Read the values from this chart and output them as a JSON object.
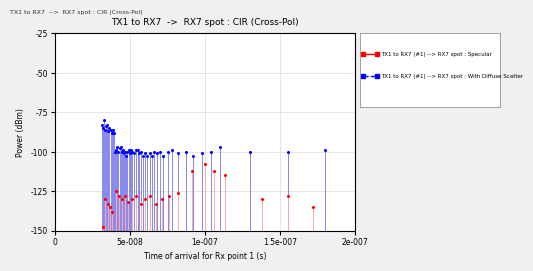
{
  "title": "TX1 to RX7  ->  RX7 spot : CIR (Cross-Pol)",
  "window_title": "TX1 to RX7  -->  RX7 spot : CIR (Cross-Pol)",
  "xlabel": "Time of arrival for Rx point 1 (s)",
  "ylabel": "Power (dBm)",
  "xlim": [
    0,
    2e-07
  ],
  "ylim": [
    -150,
    -25
  ],
  "yticks": [
    -25,
    -50,
    -75,
    -100,
    -125,
    -150
  ],
  "xticks": [
    0,
    5e-08,
    1e-07,
    1.5e-07,
    2e-07
  ],
  "xtick_labels": [
    "0",
    "5e-008",
    "1e-007",
    "1.5e-007",
    "2e-007"
  ],
  "legend1_label": "TX1 to RX7 (#1) --> RX7 spot : Specular",
  "legend2_label": "TX1 to RX7 (#1) --> RX7 spot : With Diffuse Scatter",
  "color_red": "#FF0000",
  "color_red_light": "#FFAAAA",
  "color_blue": "#0000FF",
  "color_blue_light": "#8888EE",
  "background_color": "#F0F0F0",
  "plot_bg": "#FFFFFF",
  "red_times": [
    3.2e-08,
    3.35e-08,
    3.5e-08,
    3.65e-08,
    3.8e-08,
    4.05e-08,
    4.25e-08,
    4.45e-08,
    4.65e-08,
    4.85e-08,
    5.1e-08,
    5.4e-08,
    5.7e-08,
    6e-08,
    6.3e-08,
    6.7e-08,
    7.1e-08,
    7.6e-08,
    8.2e-08,
    9.1e-08,
    1e-07,
    1.06e-07,
    1.13e-07,
    1.38e-07,
    1.55e-07,
    1.72e-07
  ],
  "red_powers": [
    -148,
    -130,
    -133,
    -135,
    -138,
    -125,
    -128,
    -130,
    -128,
    -132,
    -130,
    -128,
    -133,
    -130,
    -128,
    -133,
    -130,
    -128,
    -126,
    -112,
    -108,
    -112,
    -115,
    -130,
    -128,
    -135
  ],
  "blue_times": [
    3.1e-08,
    3.18e-08,
    3.25e-08,
    3.32e-08,
    3.4e-08,
    3.47e-08,
    3.55e-08,
    3.62e-08,
    3.7e-08,
    3.77e-08,
    3.85e-08,
    3.92e-08,
    4e-08,
    4.08e-08,
    4.15e-08,
    4.23e-08,
    4.3e-08,
    4.38e-08,
    4.45e-08,
    4.53e-08,
    4.6e-08,
    4.68e-08,
    4.75e-08,
    4.83e-08,
    4.9e-08,
    4.98e-08,
    5.05e-08,
    5.13e-08,
    5.25e-08,
    5.38e-08,
    5.5e-08,
    5.63e-08,
    5.75e-08,
    5.88e-08,
    6e-08,
    6.15e-08,
    6.3e-08,
    6.45e-08,
    6.6e-08,
    6.8e-08,
    7e-08,
    7.2e-08,
    7.5e-08,
    7.8e-08,
    8.2e-08,
    8.7e-08,
    9.2e-08,
    9.8e-08,
    1.04e-07,
    1.1e-07,
    1.3e-07,
    1.55e-07,
    1.8e-07
  ],
  "blue_powers": [
    -83,
    -85,
    -80,
    -86,
    -84,
    -83,
    -87,
    -85,
    -86,
    -88,
    -86,
    -88,
    -100,
    -99,
    -97,
    -100,
    -98,
    -97,
    -100,
    -99,
    -101,
    -100,
    -103,
    -100,
    -99,
    -101,
    -99,
    -100,
    -101,
    -99,
    -99,
    -101,
    -100,
    -103,
    -101,
    -103,
    -101,
    -103,
    -100,
    -101,
    -100,
    -103,
    -100,
    -99,
    -101,
    -100,
    -103,
    -101,
    -100,
    -97,
    -100,
    -100,
    -99
  ]
}
